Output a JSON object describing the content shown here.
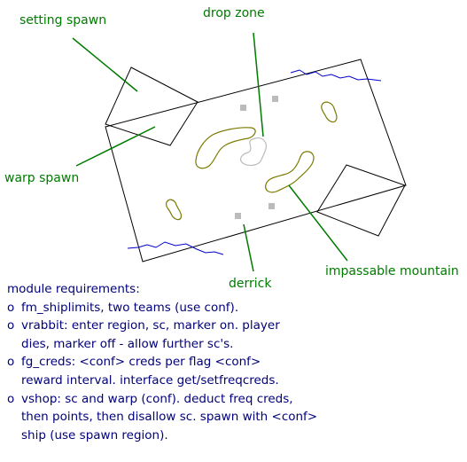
{
  "colors": {
    "annotation": "#007a00",
    "outline": "#000000",
    "water": "#0000cc",
    "mountain": "#7a7a00",
    "marker": "#bbbbbb",
    "notes_text": "#00007a"
  },
  "labels": {
    "setting_spawn": "setting spawn",
    "drop_zone": "drop zone",
    "warp_spawn": "warp spawn",
    "derrick": "derrick",
    "impassable_mountain": "impassable mountain"
  },
  "notes": {
    "heading": "module requirements:",
    "bullet_symbol": "o",
    "items": [
      {
        "lines": [
          "fm_shiplimits, two teams (use conf)."
        ]
      },
      {
        "lines": [
          "vrabbit: enter region, sc, marker on. player",
          "dies, marker off - allow further sc's."
        ]
      },
      {
        "lines": [
          "fg_creds: <conf> creds per flag <conf>",
          "reward interval. interface get/setfreqcreds."
        ]
      },
      {
        "lines": [
          "vshop: sc and warp (conf). deduct freq creds,",
          "then points, then disallow sc. spawn with <conf>",
          "ship (use spawn region)."
        ]
      }
    ]
  }
}
